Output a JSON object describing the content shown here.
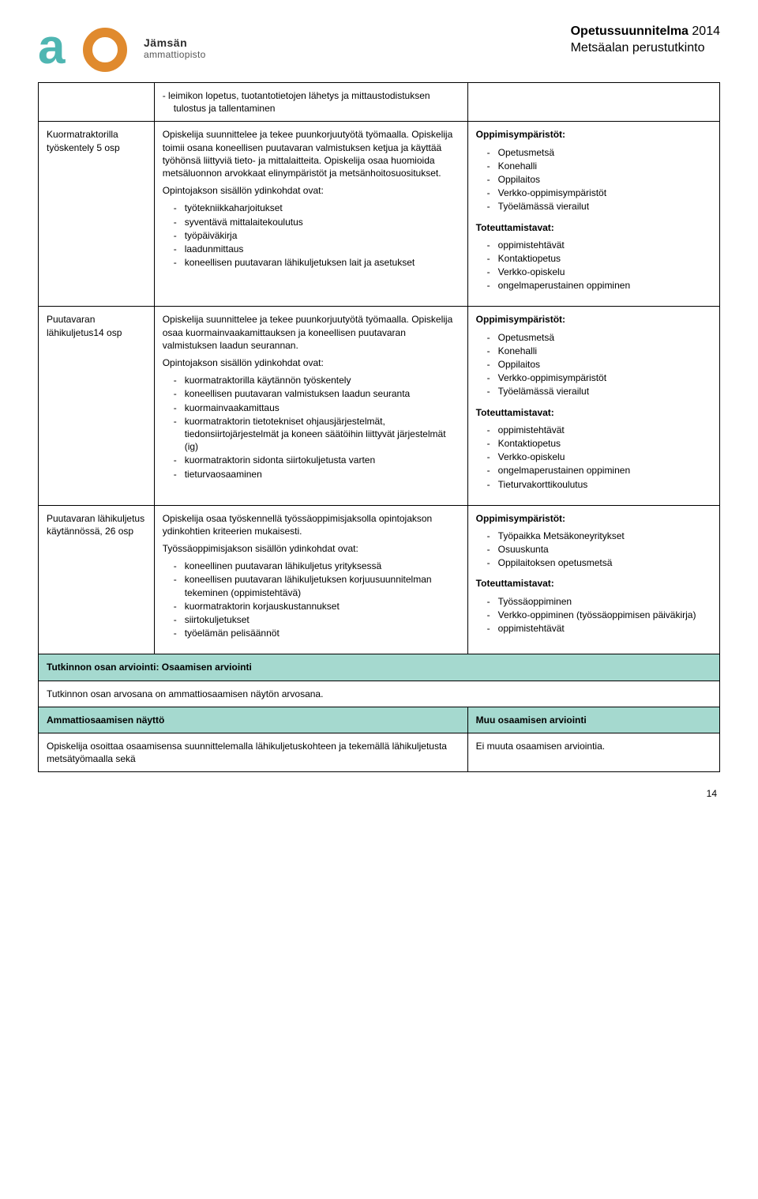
{
  "header": {
    "brand_line1": "Jämsän",
    "brand_line2": "ammattiopisto",
    "title_bold": "Opetussuunnitelma",
    "title_year": "2014",
    "subtitle": "Metsäalan perustutkinto"
  },
  "row_top_middle": "-  leimikon lopetus, tuotantotietojen lähetys ja mittaustodistuksen tulostus ja tallentaminen",
  "row1": {
    "left": "Kuormatraktorilla työskentely 5 osp",
    "mid_para": "Opiskelija suunnittelee ja tekee puunkorjuutyötä työmaalla. Opiskelija toimii osana koneellisen puutavaran valmistuksen ketjua ja käyttää työhönsä liittyviä tieto- ja mittalaitteita. Opiskelija osaa huomioida metsäluonnon arvokkaat elinympäristöt ja metsänhoitosuositukset.",
    "mid_sub": "Opintojakson sisällön ydinkohdat ovat:",
    "mid_items": [
      "työtekniikkaharjoitukset",
      "syventävä mittalaitekoulutus",
      "työpäiväkirja",
      "laadunmittaus",
      "koneellisen puutavaran lähikuljetuksen lait ja asetukset"
    ],
    "right_h1": "Oppimisympäristöt:",
    "right_env": [
      "Opetusmetsä",
      "Konehalli",
      "Oppilaitos",
      "Verkko-oppimisympäristöt",
      "Työelämässä vierailut"
    ],
    "right_h2": "Toteuttamistavat:",
    "right_impl": [
      "oppimistehtävät",
      "Kontaktiopetus",
      "Verkko-opiskelu",
      "ongelmaperustainen oppiminen"
    ]
  },
  "row2": {
    "left": "Puutavaran lähikuljetus14 osp",
    "mid_para": "Opiskelija suunnittelee ja tekee puunkorjuutyötä työmaalla. Opiskelija osaa kuormainvaakamittauksen ja koneellisen puutavaran valmistuksen laadun seurannan.",
    "mid_sub": "Opintojakson sisällön ydinkohdat ovat:",
    "mid_items": [
      "kuormatraktorilla käytännön työskentely",
      "koneellisen puutavaran valmistuksen laadun seuranta",
      "kuormainvaakamittaus",
      "kuormatraktorin tietotekniset ohjausjärjestelmät, tiedonsiirtojärjestelmät ja koneen säätöihin liittyvät järjestelmät (ig)",
      "kuormatraktorin sidonta siirtokuljetusta varten",
      "tieturvaosaaminen"
    ],
    "right_h1": "Oppimisympäristöt:",
    "right_env": [
      "Opetusmetsä",
      "Konehalli",
      "Oppilaitos",
      "Verkko-oppimisympäristöt",
      "Työelämässä vierailut"
    ],
    "right_h2": "Toteuttamistavat:",
    "right_impl": [
      "oppimistehtävät",
      "Kontaktiopetus",
      "Verkko-opiskelu",
      "ongelmaperustainen oppiminen",
      "Tieturvakorttikoulutus"
    ]
  },
  "row3": {
    "left": "Puutavaran lähikuljetus käytännössä, 26 osp",
    "mid_para": "Opiskelija osaa työskennellä työssäoppimisjaksolla opintojakson ydinkohtien kriteerien mukaisesti.",
    "mid_sub": "Työssäoppimisjakson sisällön ydinkohdat ovat:",
    "mid_items": [
      "koneellinen puutavaran lähikuljetus yrityksessä",
      "koneellisen puutavaran lähikuljetuksen korjuusuunnitelman tekeminen (oppimistehtävä)",
      "kuormatraktorin korjauskustannukset",
      "siirtokuljetukset",
      "työelämän pelisäännöt"
    ],
    "right_h1": "Oppimisympäristöt:",
    "right_env": [
      "Työpaikka Metsäkoneyritykset",
      "Osuuskunta",
      "Oppilaitoksen opetusmetsä"
    ],
    "right_h2": "Toteuttamistavat:",
    "right_impl": [
      "Työssäoppiminen",
      "Verkko-oppiminen (työssäoppimisen päiväkirja)",
      "oppimistehtävät"
    ]
  },
  "green1": "Tutkinnon osan arviointi: Osaamisen arviointi",
  "span1": "Tutkinnon osan arvosana on ammattiosaamisen näytön arvosana.",
  "green2_left": "Ammattiosaamisen näyttö",
  "green2_right": "Muu osaamisen arviointi",
  "bottom_left": "Opiskelija osoittaa osaamisensa suunnittelemalla lähikuljetuskohteen ja tekemällä lähikuljetusta metsätyömaalla sekä",
  "bottom_right": "Ei muuta osaamisen arviointia.",
  "pagenum": "14",
  "colors": {
    "green": "#a5d9cf",
    "logo_teal": "#4fb6b2",
    "logo_orange": "#e08a2e"
  }
}
